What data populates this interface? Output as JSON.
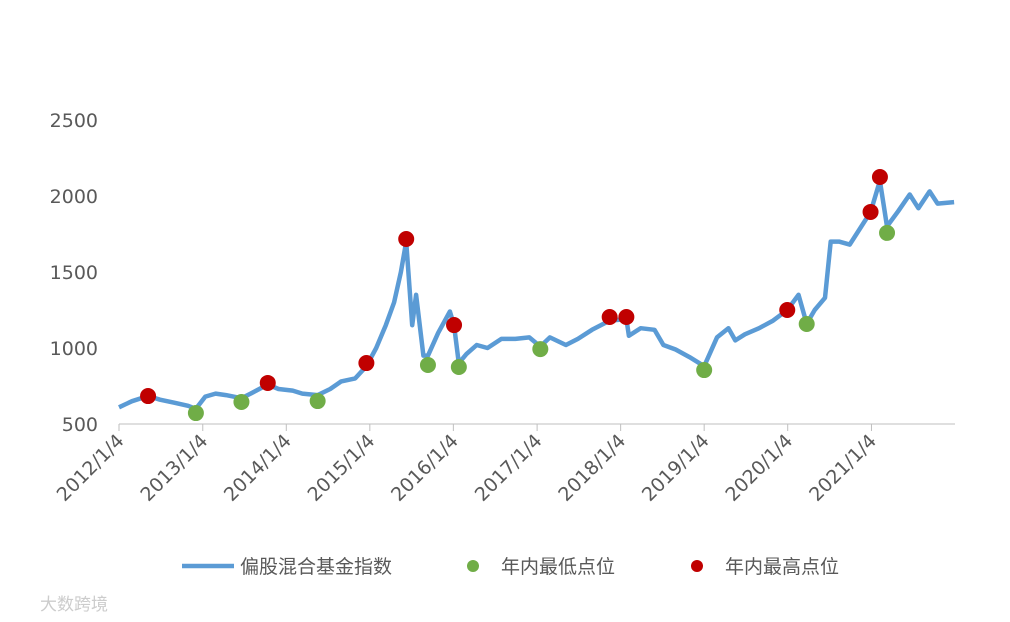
{
  "chart_data": {
    "type": "line",
    "watermark": "大数跨境",
    "xlim": [
      "2012/1/4",
      "2022/1/4"
    ],
    "xticks": [
      "2012/1/4",
      "2013/1/4",
      "2014/1/4",
      "2015/1/4",
      "2016/1/4",
      "2017/1/4",
      "2018/1/4",
      "2019/1/4",
      "2020/1/4",
      "2021/1/4"
    ],
    "ylim": [
      500,
      2500
    ],
    "yticks": [
      500,
      1000,
      1500,
      2000,
      2500
    ],
    "series": [
      {
        "name": "偏股混合基金指数",
        "type": "line",
        "color": "#5b9bd5",
        "x": [
          "2012/1/4",
          "2012/3/1",
          "2012/5/10",
          "2012/7/1",
          "2012/9/1",
          "2012/11/1",
          "2012/12/5",
          "2013/1/15",
          "2013/3/1",
          "2013/4/15",
          "2013/6/22",
          "2013/8/1",
          "2013/10/15",
          "2013/12/1",
          "2014/2/1",
          "2014/3/15",
          "2014/5/21",
          "2014/7/15",
          "2014/9/1",
          "2014/11/1",
          "2014/12/20",
          "2015/2/1",
          "2015/3/15",
          "2015/4/20",
          "2015/5/20",
          "2015/6/12",
          "2015/7/8",
          "2015/7/25",
          "2015/8/26",
          "2015/9/15",
          "2015/10/30",
          "2015/12/20",
          "2016/1/7",
          "2016/1/28",
          "2016/3/1",
          "2016/4/15",
          "2016/6/1",
          "2016/8/1",
          "2016/10/1",
          "2016/12/1",
          "2017/1/18",
          "2017/3/1",
          "2017/5/10",
          "2017/7/1",
          "2017/9/1",
          "2017/11/17",
          "2018/1/29",
          "2018/2/9",
          "2018/4/1",
          "2018/6/1",
          "2018/7/10",
          "2018/9/1",
          "2018/11/1",
          "2019/1/4",
          "2019/3/1",
          "2019/4/20",
          "2019/5/20",
          "2019/7/1",
          "2019/9/1",
          "2019/11/1",
          "2020/1/2",
          "2020/2/20",
          "2020/3/27",
          "2020/5/1",
          "2020/6/15",
          "2020/7/10",
          "2020/8/15",
          "2020/10/1",
          "2020/12/31",
          "2021/2/10",
          "2021/3/13",
          "2021/5/1",
          "2021/6/20",
          "2021/7/28",
          "2021/9/15",
          "2021/10/20",
          "2021/12/31"
        ],
        "values": [
          610,
          650,
          684,
          660,
          640,
          620,
          600,
          680,
          700,
          690,
          670,
          700,
          760,
          730,
          720,
          700,
          690,
          730,
          780,
          800,
          880,
          1000,
          1150,
          1300,
          1500,
          1700,
          1150,
          1350,
          950,
          950,
          1100,
          1240,
          1151,
          900,
          960,
          1020,
          1000,
          1060,
          1060,
          1070,
          1010,
          1070,
          1020,
          1060,
          1120,
          1180,
          1190,
          1080,
          1130,
          1120,
          1020,
          990,
          940,
          880,
          1070,
          1130,
          1050,
          1090,
          1130,
          1180,
          1250,
          1350,
          1160,
          1250,
          1330,
          1700,
          1700,
          1680,
          1895,
          2100,
          1800,
          1900,
          2010,
          1920,
          2030,
          1950,
          1960
        ]
      },
      {
        "name": "年内最低点位",
        "type": "scatter",
        "color": "#70ad47",
        "x": [
          "2012/12/5",
          "2013/6/22",
          "2014/5/21",
          "2015/9/15",
          "2016/1/28",
          "2017/1/18",
          "2019/1/4",
          "2020/3/27",
          "2021/3/13"
        ],
        "values": [
          572,
          645,
          651,
          888,
          875,
          993,
          855,
          1158,
          1757
        ]
      },
      {
        "name": "年内最高点位",
        "type": "scatter",
        "color": "#c00000",
        "x": [
          "2012/5/10",
          "2013/10/15",
          "2014/12/20",
          "2015/6/12",
          "2016/1/7",
          "2017/11/17",
          "2018/1/29",
          "2020/1/2",
          "2020/12/31",
          "2021/2/10"
        ],
        "values": [
          684,
          770,
          901,
          1717,
          1151,
          1204,
          1204,
          1250,
          1895,
          2125
        ]
      }
    ]
  }
}
